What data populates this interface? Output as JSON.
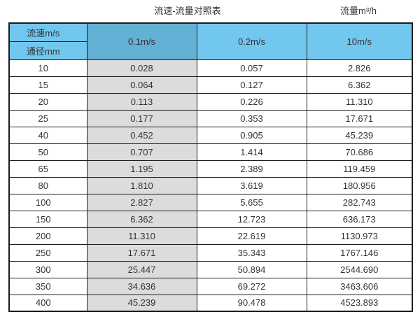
{
  "page": {
    "title_left": "流速-流量对照表",
    "title_right": "流量m³/h"
  },
  "colors": {
    "header_blue": "#72C7EE",
    "header_blue_dark": "#62B0D3",
    "shade_gray": "#DCDCDC",
    "border_dark": "#1C1C1C",
    "text": "#333333"
  },
  "chart_data": {
    "type": "table",
    "title": "流速-流量对照表",
    "unit_label": "流量m³/h",
    "corner_top": "流速m/s",
    "corner_bottom": "通径mm",
    "velocity_columns": [
      "0.1m/s",
      "0.2m/s",
      "10m/s"
    ],
    "diameters": [
      "10",
      "15",
      "20",
      "25",
      "40",
      "50",
      "65",
      "80",
      "100",
      "150",
      "200",
      "250",
      "300",
      "350",
      "400"
    ],
    "series": [
      {
        "name": "0.1m/s",
        "values": [
          "0.028",
          "0.064",
          "0.113",
          "0.177",
          "0.452",
          "0.707",
          "1.195",
          "1.810",
          "2.827",
          "6.362",
          "11.310",
          "17.671",
          "25.447",
          "34.636",
          "45.239"
        ]
      },
      {
        "name": "0.2m/s",
        "values": [
          "0.057",
          "0.127",
          "0.226",
          "0.353",
          "0.905",
          "1.414",
          "2.389",
          "3.619",
          "5.655",
          "12.723",
          "22.619",
          "35.343",
          "50.894",
          "69.272",
          "90.478"
        ]
      },
      {
        "name": "10m/s",
        "values": [
          "2.826",
          "6.362",
          "11.310",
          "17.671",
          "45.239",
          "70.686",
          "119.459",
          "180.956",
          "282.743",
          "636.173",
          "1130.973",
          "1767.146",
          "2544.690",
          "3463.606",
          "4523.893"
        ]
      }
    ]
  }
}
